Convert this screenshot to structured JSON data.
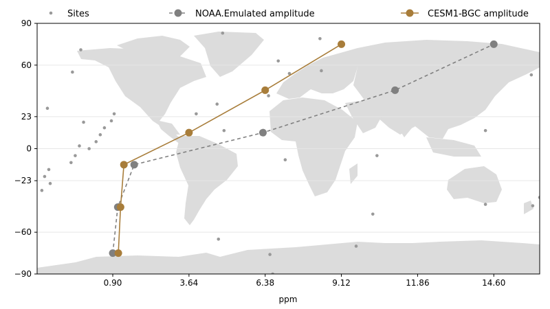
{
  "chart_data": {
    "type": "line",
    "title": "",
    "xlabel": "ppm",
    "ylabel": "",
    "xlim": [
      -1.82,
      16.25
    ],
    "ylim": [
      -90,
      90
    ],
    "xticks": [
      0.9,
      3.64,
      6.38,
      9.12,
      11.86,
      14.6
    ],
    "xtick_labels": [
      "0.90",
      "3.64",
      "6.38",
      "9.12",
      "11.86",
      "14.60"
    ],
    "yticks": [
      -90,
      -60,
      -23,
      0,
      23,
      60,
      90
    ],
    "ytick_labels": [
      "−90",
      "−60",
      "−23",
      "0",
      "23",
      "60",
      "90"
    ],
    "grid": "horizontal",
    "background": "world-map",
    "legend_position": "top",
    "legend": [
      "Sites",
      "NOAA.Emulated amplitude",
      "CESM1-BGC amplitude"
    ],
    "colors": {
      "sites": "#999999",
      "noaa": "#808080",
      "cesm": "#a87d3a",
      "land": "#dcdcdc",
      "grid": "#e6e6e6"
    },
    "series": [
      {
        "name": "NOAA.Emulated amplitude",
        "style": "dashed",
        "x": [
          0.9,
          1.08,
          1.67,
          6.3,
          11.05,
          14.6
        ],
        "y": [
          -75,
          -42,
          -11.5,
          11.5,
          42,
          75
        ]
      },
      {
        "name": "CESM1-BGC amplitude",
        "style": "solid",
        "x": [
          1.1,
          1.18,
          1.3,
          3.64,
          6.38,
          9.12
        ],
        "y": [
          -75,
          -42,
          -11.5,
          11.5,
          42,
          75
        ]
      }
    ],
    "sites": [
      [
        -1.45,
        29
      ],
      [
        -1.65,
        -30
      ],
      [
        -1.55,
        -20
      ],
      [
        -1.4,
        -15
      ],
      [
        -1.35,
        -25
      ],
      [
        -0.55,
        55
      ],
      [
        -0.25,
        71
      ],
      [
        -0.15,
        19
      ],
      [
        -0.3,
        2
      ],
      [
        -0.45,
        -5
      ],
      [
        -0.6,
        -10
      ],
      [
        0.05,
        0
      ],
      [
        0.3,
        5
      ],
      [
        0.45,
        10
      ],
      [
        0.6,
        15
      ],
      [
        0.85,
        20
      ],
      [
        0.95,
        25
      ],
      [
        3.9,
        25
      ],
      [
        4.65,
        32
      ],
      [
        4.9,
        13
      ],
      [
        4.7,
        -65
      ],
      [
        4.85,
        83
      ],
      [
        6.5,
        38
      ],
      [
        6.85,
        63
      ],
      [
        7.25,
        54
      ],
      [
        7.1,
        -8
      ],
      [
        6.55,
        -76
      ],
      [
        6.65,
        -90
      ],
      [
        8.35,
        79
      ],
      [
        8.4,
        56
      ],
      [
        9.65,
        -70
      ],
      [
        10.25,
        -47
      ],
      [
        10.4,
        -5
      ],
      [
        14.3,
        13
      ],
      [
        14.3,
        -40
      ],
      [
        15.95,
        53
      ],
      [
        16.0,
        -41
      ],
      [
        16.25,
        -35
      ]
    ]
  }
}
